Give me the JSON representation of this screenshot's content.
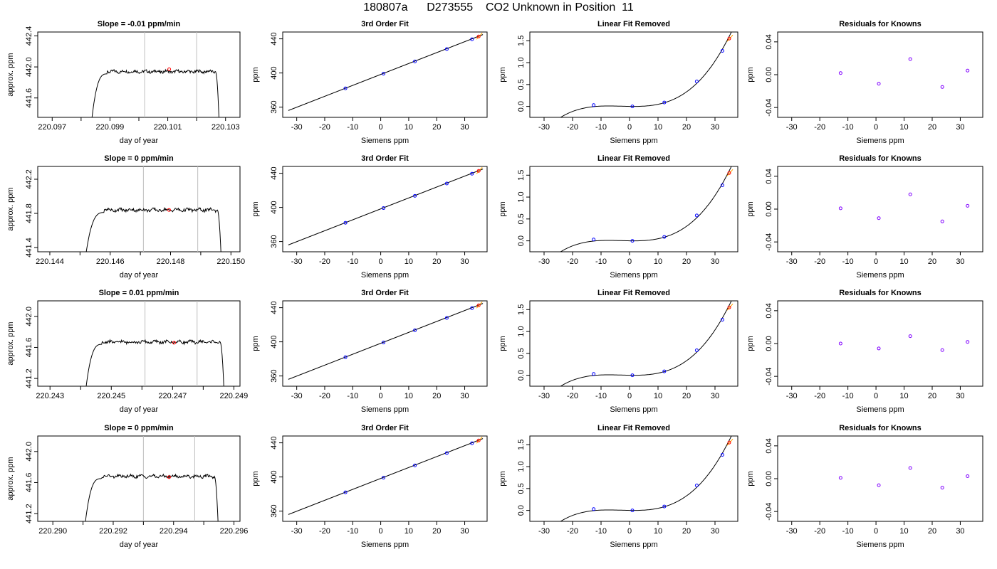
{
  "title": "180807a      D273555    CO2 Unknown in Position  11",
  "chart_data": [
    {
      "type": "line",
      "title": "Slope =  -0.01  ppm/min",
      "xlabel": "day of year",
      "ylabel": "approx. ppm",
      "xlim": [
        220.0965,
        220.1035
      ],
      "ylim": [
        441.35,
        442.45
      ],
      "xticks": [
        220.097,
        220.098,
        220.099,
        220.1,
        220.101,
        220.102,
        220.103
      ],
      "xtick_labels": [
        "220.097",
        "",
        "220.099",
        "",
        "220.101",
        "",
        "220.103"
      ],
      "yticks": [
        441.6,
        442.0,
        442.4
      ],
      "ytick_labels": [
        "441.6",
        "442.0",
        "442.4"
      ],
      "vlines": [
        220.1002,
        220.102
      ],
      "rise_start": 220.0983,
      "rise_end": 220.0989,
      "fall_start": 220.10265,
      "fall_end": 220.1028,
      "plateau": 441.94,
      "highlight": {
        "x": 220.10105,
        "y": 441.97
      },
      "annotation_color": "#ff0000"
    },
    {
      "type": "scatter",
      "title": "3rd Order Fit",
      "xlabel": "Siemens ppm",
      "ylabel": "ppm",
      "xlim": [
        -35,
        38
      ],
      "ylim": [
        348,
        448
      ],
      "xticks": [
        -30,
        -20,
        -10,
        0,
        10,
        20,
        30
      ],
      "xtick_labels": [
        "-30",
        "-20",
        "-10",
        "0",
        "10",
        "20",
        "30"
      ],
      "yticks": [
        360,
        400,
        440
      ],
      "ytick_labels": [
        "360",
        "400",
        "440"
      ],
      "line": [
        [
          -33,
          356
        ],
        [
          36.5,
          445
        ]
      ],
      "points": [
        [
          -12.6,
          382.0
        ],
        [
          1.0,
          399.2
        ],
        [
          12.2,
          413.5
        ],
        [
          23.6,
          428.0
        ],
        [
          32.6,
          439.5
        ]
      ],
      "highlight": {
        "x": 35.0,
        "y": 442.8
      }
    },
    {
      "type": "scatter",
      "title": "Linear Fit Removed",
      "xlabel": "Siemens ppm",
      "ylabel": "ppm",
      "xlim": [
        -35,
        38
      ],
      "ylim": [
        -0.25,
        1.7
      ],
      "xticks": [
        -30,
        -20,
        -10,
        0,
        10,
        20,
        30
      ],
      "xtick_labels": [
        "-30",
        "-20",
        "-10",
        "0",
        "10",
        "20",
        "30"
      ],
      "yticks": [
        0,
        0.5,
        1.0,
        1.5
      ],
      "ytick_labels": [
        "0.0",
        "0.5",
        "1.0",
        "1.5"
      ],
      "curve_range": [
        -33,
        36.5
      ],
      "points": [
        [
          -12.6,
          0.03
        ],
        [
          1.0,
          0.0
        ],
        [
          12.2,
          0.09
        ],
        [
          23.6,
          0.57
        ],
        [
          32.6,
          1.27
        ]
      ],
      "highlight": {
        "x": 35.0,
        "y": 1.55
      }
    },
    {
      "type": "scatter",
      "title": "Residuals for Knowns",
      "xlabel": "Siemens ppm",
      "ylabel": "ppm",
      "xlim": [
        -35,
        38
      ],
      "ylim": [
        -0.052,
        0.052
      ],
      "xticks": [
        -30,
        -20,
        -10,
        0,
        10,
        20,
        30
      ],
      "xtick_labels": [
        "-30",
        "-20",
        "-10",
        "0",
        "10",
        "20",
        "30"
      ],
      "yticks": [
        -0.04,
        0.0,
        0.04
      ],
      "ytick_labels": [
        "-0.04",
        "0.00",
        "0.04"
      ],
      "points": [
        [
          -12.6,
          0.002
        ],
        [
          1.0,
          -0.011
        ],
        [
          12.2,
          0.019
        ],
        [
          23.6,
          -0.015
        ],
        [
          32.6,
          0.005
        ]
      ]
    },
    {
      "type": "line",
      "title": "Slope =  0  ppm/min",
      "xlabel": "day of year",
      "ylabel": "approx. ppm",
      "xlim": [
        220.1436,
        220.1503
      ],
      "ylim": [
        441.35,
        442.35
      ],
      "xticks": [
        220.144,
        220.145,
        220.146,
        220.147,
        220.148,
        220.149,
        220.15
      ],
      "xtick_labels": [
        "220.144",
        "",
        "220.146",
        "",
        "220.148",
        "",
        "220.150"
      ],
      "yticks": [
        441.4,
        441.8,
        442.2
      ],
      "ytick_labels": [
        "441.4",
        "441.8",
        "442.2"
      ],
      "vlines": [
        220.1471,
        220.1489
      ],
      "rise_start": 220.1451,
      "rise_end": 220.1458,
      "fall_start": 220.14955,
      "fall_end": 220.1497,
      "plateau": 441.84,
      "highlight": {
        "x": 220.14795,
        "y": 441.84
      },
      "annotation_color": "#ff0000"
    },
    {
      "type": "scatter",
      "title": "3rd Order Fit",
      "xlabel": "Siemens ppm",
      "ylabel": "ppm",
      "xlim": [
        -35,
        38
      ],
      "ylim": [
        348,
        448
      ],
      "xticks": [
        -30,
        -20,
        -10,
        0,
        10,
        20,
        30
      ],
      "xtick_labels": [
        "-30",
        "-20",
        "-10",
        "0",
        "10",
        "20",
        "30"
      ],
      "yticks": [
        360,
        400,
        440
      ],
      "ytick_labels": [
        "360",
        "400",
        "440"
      ],
      "line": [
        [
          -33,
          356
        ],
        [
          36.5,
          445
        ]
      ],
      "points": [
        [
          -12.6,
          382.0
        ],
        [
          1.0,
          399.2
        ],
        [
          12.2,
          413.5
        ],
        [
          23.6,
          428.0
        ],
        [
          32.6,
          439.5
        ]
      ],
      "highlight": {
        "x": 35.0,
        "y": 442.8
      }
    },
    {
      "type": "scatter",
      "title": "Linear Fit Removed",
      "xlabel": "Siemens ppm",
      "ylabel": "ppm",
      "xlim": [
        -35,
        38
      ],
      "ylim": [
        -0.25,
        1.7
      ],
      "xticks": [
        -30,
        -20,
        -10,
        0,
        10,
        20,
        30
      ],
      "xtick_labels": [
        "-30",
        "-20",
        "-10",
        "0",
        "10",
        "20",
        "30"
      ],
      "yticks": [
        0,
        0.5,
        1.0,
        1.5
      ],
      "ytick_labels": [
        "0.0",
        "0.5",
        "1.0",
        "1.5"
      ],
      "curve_range": [
        -33,
        36.5
      ],
      "points": [
        [
          -12.6,
          0.03
        ],
        [
          1.0,
          0.0
        ],
        [
          12.2,
          0.09
        ],
        [
          23.6,
          0.58
        ],
        [
          32.6,
          1.27
        ]
      ],
      "highlight": {
        "x": 35.0,
        "y": 1.55
      }
    },
    {
      "type": "scatter",
      "title": "Residuals for Knowns",
      "xlabel": "Siemens ppm",
      "ylabel": "ppm",
      "xlim": [
        -35,
        38
      ],
      "ylim": [
        -0.052,
        0.052
      ],
      "xticks": [
        -30,
        -20,
        -10,
        0,
        10,
        20,
        30
      ],
      "xtick_labels": [
        "-30",
        "-20",
        "-10",
        "0",
        "10",
        "20",
        "30"
      ],
      "yticks": [
        -0.04,
        0.0,
        0.04
      ],
      "ytick_labels": [
        "-0.04",
        "0.00",
        "0.04"
      ],
      "points": [
        [
          -12.6,
          0.001
        ],
        [
          1.0,
          -0.011
        ],
        [
          12.2,
          0.018
        ],
        [
          23.6,
          -0.015
        ],
        [
          32.6,
          0.004
        ]
      ]
    },
    {
      "type": "line",
      "title": "Slope =  0.01  ppm/min",
      "xlabel": "day of year",
      "ylabel": "approx. ppm",
      "xlim": [
        220.2426,
        220.2492
      ],
      "ylim": [
        441.1,
        442.2
      ],
      "xticks": [
        220.243,
        220.244,
        220.245,
        220.246,
        220.247,
        220.248,
        220.249
      ],
      "xtick_labels": [
        "220.243",
        "",
        "220.245",
        "",
        "220.247",
        "",
        "220.249"
      ],
      "yticks": [
        441.2,
        441.6,
        442.0
      ],
      "ytick_labels": [
        "441.2",
        "441.6",
        "442.0"
      ],
      "vlines": [
        220.2461,
        220.2478
      ],
      "rise_start": 220.2441,
      "rise_end": 220.2447,
      "fall_start": 220.24855,
      "fall_end": 220.2487,
      "plateau": 441.67,
      "highlight": {
        "x": 220.24705,
        "y": 441.66
      },
      "annotation_color": "#ff0000"
    },
    {
      "type": "scatter",
      "title": "3rd Order Fit",
      "xlabel": "Siemens ppm",
      "ylabel": "ppm",
      "xlim": [
        -35,
        38
      ],
      "ylim": [
        348,
        448
      ],
      "xticks": [
        -30,
        -20,
        -10,
        0,
        10,
        20,
        30
      ],
      "xtick_labels": [
        "-30",
        "-20",
        "-10",
        "0",
        "10",
        "20",
        "30"
      ],
      "yticks": [
        360,
        400,
        440
      ],
      "ytick_labels": [
        "360",
        "400",
        "440"
      ],
      "line": [
        [
          -33,
          356
        ],
        [
          36.5,
          445
        ]
      ],
      "points": [
        [
          -12.6,
          382.0
        ],
        [
          1.0,
          399.2
        ],
        [
          12.2,
          413.5
        ],
        [
          23.6,
          428.0
        ],
        [
          32.6,
          439.5
        ]
      ],
      "highlight": {
        "x": 35.0,
        "y": 442.8
      }
    },
    {
      "type": "scatter",
      "title": "Linear Fit Removed",
      "xlabel": "Siemens ppm",
      "ylabel": "ppm",
      "xlim": [
        -35,
        38
      ],
      "ylim": [
        -0.25,
        1.7
      ],
      "xticks": [
        -30,
        -20,
        -10,
        0,
        10,
        20,
        30
      ],
      "xtick_labels": [
        "-30",
        "-20",
        "-10",
        "0",
        "10",
        "20",
        "30"
      ],
      "yticks": [
        0,
        0.5,
        1.0,
        1.5
      ],
      "ytick_labels": [
        "0.0",
        "0.5",
        "1.0",
        "1.5"
      ],
      "curve_range": [
        -33,
        36.5
      ],
      "points": [
        [
          -12.6,
          0.03
        ],
        [
          1.0,
          0.0
        ],
        [
          12.2,
          0.09
        ],
        [
          23.6,
          0.57
        ],
        [
          32.6,
          1.27
        ]
      ],
      "highlight": {
        "x": 35.0,
        "y": 1.55
      }
    },
    {
      "type": "scatter",
      "title": "Residuals for Knowns",
      "xlabel": "Siemens ppm",
      "ylabel": "ppm",
      "xlim": [
        -35,
        38
      ],
      "ylim": [
        -0.052,
        0.052
      ],
      "xticks": [
        -30,
        -20,
        -10,
        0,
        10,
        20,
        30
      ],
      "xtick_labels": [
        "-30",
        "-20",
        "-10",
        "0",
        "10",
        "20",
        "30"
      ],
      "yticks": [
        -0.04,
        0.0,
        0.04
      ],
      "ytick_labels": [
        "-0.04",
        "0.00",
        "0.04"
      ],
      "points": [
        [
          -12.6,
          0.0
        ],
        [
          1.0,
          -0.006
        ],
        [
          12.2,
          0.009
        ],
        [
          23.6,
          -0.008
        ],
        [
          32.6,
          0.002
        ]
      ]
    },
    {
      "type": "line",
      "title": "Slope =  0  ppm/min",
      "xlabel": "day of year",
      "ylabel": "approx. ppm",
      "xlim": [
        220.2895,
        220.2962
      ],
      "ylim": [
        441.1,
        442.2
      ],
      "xticks": [
        220.29,
        220.291,
        220.292,
        220.293,
        220.294,
        220.295,
        220.296
      ],
      "xtick_labels": [
        "220.290",
        "",
        "220.292",
        "",
        "220.294",
        "",
        "220.296"
      ],
      "yticks": [
        441.2,
        441.6,
        442.0
      ],
      "ytick_labels": [
        "441.2",
        "441.6",
        "442.0"
      ],
      "vlines": [
        220.293,
        220.2947
      ],
      "rise_start": 220.291,
      "rise_end": 220.2916,
      "fall_start": 220.29535,
      "fall_end": 220.2955,
      "plateau": 441.68,
      "highlight": {
        "x": 220.29385,
        "y": 441.67
      },
      "annotation_color": "#ff0000"
    },
    {
      "type": "scatter",
      "title": "3rd Order Fit",
      "xlabel": "Siemens ppm",
      "ylabel": "ppm",
      "xlim": [
        -35,
        38
      ],
      "ylim": [
        348,
        448
      ],
      "xticks": [
        -30,
        -20,
        -10,
        0,
        10,
        20,
        30
      ],
      "xtick_labels": [
        "-30",
        "-20",
        "-10",
        "0",
        "10",
        "20",
        "30"
      ],
      "yticks": [
        360,
        400,
        440
      ],
      "ytick_labels": [
        "360",
        "400",
        "440"
      ],
      "line": [
        [
          -33,
          356
        ],
        [
          36.5,
          445
        ]
      ],
      "points": [
        [
          -12.6,
          382.0
        ],
        [
          1.0,
          399.2
        ],
        [
          12.2,
          413.5
        ],
        [
          23.6,
          428.0
        ],
        [
          32.6,
          439.5
        ]
      ],
      "highlight": {
        "x": 35.0,
        "y": 442.8
      }
    },
    {
      "type": "scatter",
      "title": "Linear Fit Removed",
      "xlabel": "Siemens ppm",
      "ylabel": "ppm",
      "xlim": [
        -35,
        38
      ],
      "ylim": [
        -0.25,
        1.7
      ],
      "xticks": [
        -30,
        -20,
        -10,
        0,
        10,
        20,
        30
      ],
      "xtick_labels": [
        "-30",
        "-20",
        "-10",
        "0",
        "10",
        "20",
        "30"
      ],
      "yticks": [
        0,
        0.5,
        1.0,
        1.5
      ],
      "ytick_labels": [
        "0.0",
        "0.5",
        "1.0",
        "1.5"
      ],
      "curve_range": [
        -33,
        36.5
      ],
      "points": [
        [
          -12.6,
          0.03
        ],
        [
          1.0,
          0.0
        ],
        [
          12.2,
          0.09
        ],
        [
          23.6,
          0.57
        ],
        [
          32.6,
          1.27
        ]
      ],
      "highlight": {
        "x": 35.0,
        "y": 1.55
      }
    },
    {
      "type": "scatter",
      "title": "Residuals for Knowns",
      "xlabel": "Siemens ppm",
      "ylabel": "ppm",
      "xlim": [
        -35,
        38
      ],
      "ylim": [
        -0.052,
        0.052
      ],
      "xticks": [
        -30,
        -20,
        -10,
        0,
        10,
        20,
        30
      ],
      "xtick_labels": [
        "-30",
        "-20",
        "-10",
        "0",
        "10",
        "20",
        "30"
      ],
      "yticks": [
        -0.04,
        0.0,
        0.04
      ],
      "ytick_labels": [
        "-0.04",
        "0.00",
        "0.04"
      ],
      "points": [
        [
          -12.6,
          0.001
        ],
        [
          1.0,
          -0.008
        ],
        [
          12.2,
          0.013
        ],
        [
          23.6,
          -0.011
        ],
        [
          32.6,
          0.003
        ]
      ]
    }
  ],
  "colors": {
    "known_point": "#0000ff",
    "residual_point": "#8000ff",
    "highlight": "#ff0000",
    "highlight_alt": "#ffa500",
    "vline": "#bebebe",
    "axis": "#000000"
  }
}
